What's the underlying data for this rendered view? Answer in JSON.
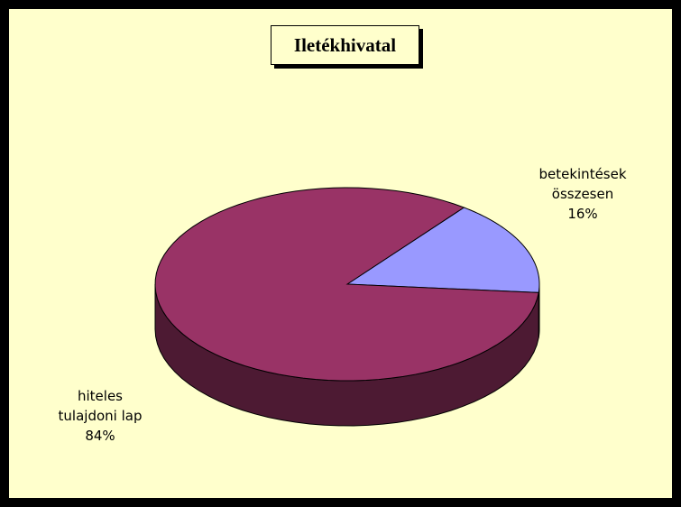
{
  "chart_data": {
    "type": "pie",
    "title": "Iletékhivatal",
    "categories": [
      "betekintések összesen",
      "hiteles tulajdoni lap"
    ],
    "values": [
      16,
      84
    ],
    "value_labels": [
      "16%",
      "84%"
    ],
    "colors": [
      "#9999FF",
      "#993366"
    ]
  }
}
